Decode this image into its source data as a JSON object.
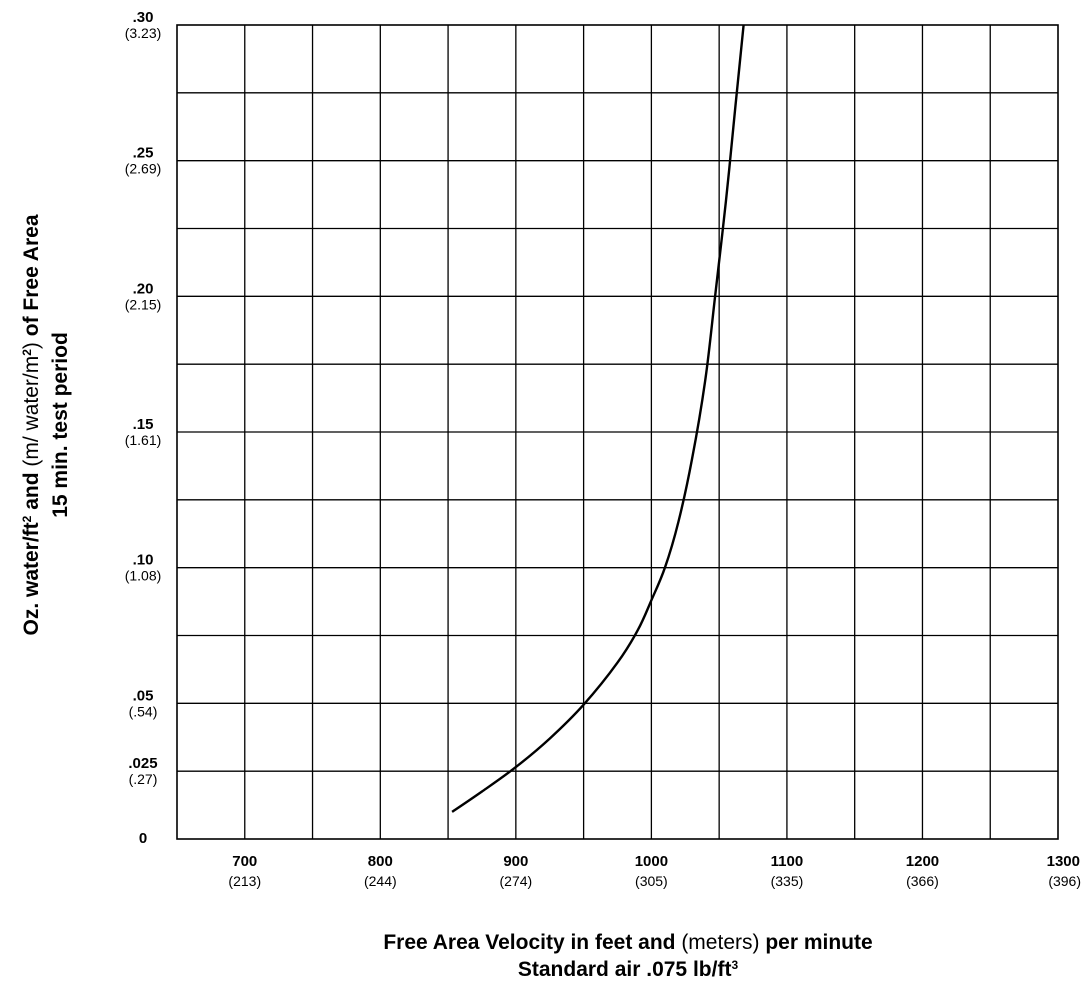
{
  "chart_data": {
    "type": "line",
    "x_axis": {
      "min": 650,
      "max": 1300,
      "grid_step": 50,
      "tick_values": [
        700,
        800,
        900,
        1000,
        1100,
        1200,
        1300
      ],
      "tick_labels": [
        "700",
        "800",
        "900",
        "1000",
        "1100",
        "1200",
        "1300"
      ],
      "tick_sublabels": [
        "(213)",
        "(244)",
        "(274)",
        "(305)",
        "(335)",
        "(366)",
        "(396)"
      ],
      "title_lines": [
        [
          {
            "text": "Free Area Velocity in feet and ",
            "style": "bold"
          },
          {
            "text": "(meters)",
            "style": "plain"
          },
          {
            "text": " per minute",
            "style": "bold"
          }
        ],
        [
          {
            "text": "Standard air .075 lb/ft",
            "style": "bold"
          },
          {
            "text": "3",
            "style": "sup"
          }
        ]
      ]
    },
    "y_axis": {
      "min": 0,
      "max": 0.3,
      "grid_step": 0.025,
      "tick_values": [
        0,
        0.025,
        0.05,
        0.1,
        0.15,
        0.2,
        0.25,
        0.3
      ],
      "tick_labels": [
        "0",
        ".025",
        ".05",
        ".10",
        ".15",
        ".20",
        ".25",
        ".30"
      ],
      "tick_sublabels": [
        "",
        "(.27)",
        "(.54)",
        "(1.08)",
        "(1.61)",
        "(2.15)",
        "(2.69)",
        "(3.23)"
      ],
      "title_lines": [
        [
          {
            "text": "Oz. water/ft",
            "style": "bold"
          },
          {
            "text": "2",
            "style": "sup"
          },
          {
            "text": " and ",
            "style": "bold"
          },
          {
            "text": "(m/ water/m",
            "style": "plain"
          },
          {
            "text": "2",
            "style": "sup"
          },
          {
            "text": ")",
            "style": "plain"
          },
          {
            "text": " of Free Area",
            "style": "bold"
          }
        ],
        [
          {
            "text": "15 min. test period",
            "style": "bold"
          }
        ]
      ]
    },
    "grid": true,
    "series": [
      {
        "points": [
          [
            853,
            0.01
          ],
          [
            875,
            0.0175
          ],
          [
            900,
            0.0265
          ],
          [
            925,
            0.037
          ],
          [
            950,
            0.0495
          ],
          [
            975,
            0.065
          ],
          [
            990,
            0.077
          ],
          [
            1000,
            0.088
          ],
          [
            1010,
            0.1
          ],
          [
            1020,
            0.117
          ],
          [
            1030,
            0.14
          ],
          [
            1040,
            0.17
          ],
          [
            1047,
            0.2
          ],
          [
            1055,
            0.235
          ],
          [
            1062,
            0.27
          ],
          [
            1068,
            0.3
          ]
        ]
      }
    ]
  }
}
